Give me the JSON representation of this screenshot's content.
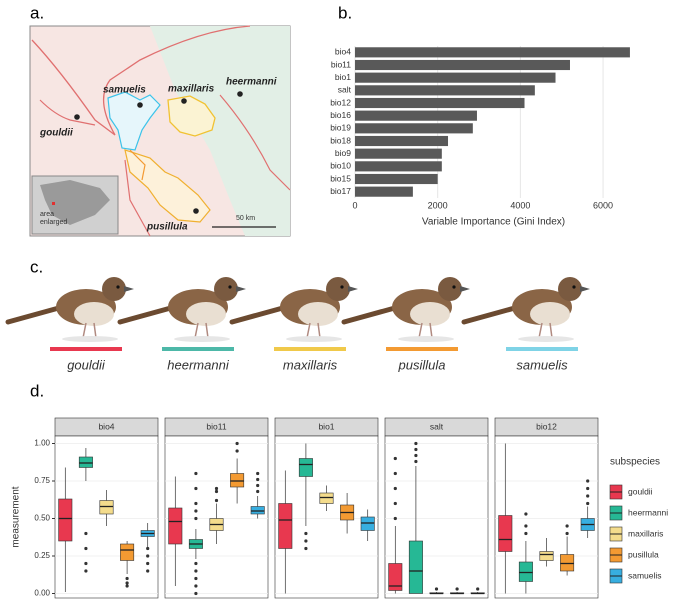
{
  "panels": [
    "a.",
    "b.",
    "c.",
    "d."
  ],
  "map": {
    "labels": [
      "samuelis",
      "maxillaris",
      "heermanni",
      "gouldii",
      "pusillula",
      "50 km",
      "area",
      "enlarged"
    ]
  },
  "birds": [
    {
      "name": "gouldii",
      "color": "#e8384f"
    },
    {
      "name": "heermanni",
      "color": "#4db8a8"
    },
    {
      "name": "maxillaris",
      "color": "#f0c94a"
    },
    {
      "name": "pusillula",
      "color": "#f39a32"
    },
    {
      "name": "samuelis",
      "color": "#7fd3e6"
    }
  ],
  "chart_data": [
    {
      "type": "hbar",
      "x_label": "Variable Importance (Gini Index)",
      "color": "#595959",
      "grid": true,
      "categories": [
        "bio4",
        "bio11",
        "bio1",
        "salt",
        "bio12",
        "bio16",
        "bio19",
        "bio18",
        "bio9",
        "bio10",
        "bio15",
        "bio17"
      ],
      "values": [
        6650,
        5200,
        4850,
        4350,
        4100,
        2950,
        2850,
        2250,
        2100,
        2100,
        2000,
        1400
      ],
      "xlim": [
        0,
        6700
      ],
      "xticks": [
        0,
        2000,
        4000,
        6000
      ]
    },
    {
      "type": "box",
      "y_label": "measurement",
      "legend_title": "subspecies",
      "legend": "right",
      "grid": true,
      "facets": [
        "bio4",
        "bio11",
        "bio1",
        "salt",
        "bio12"
      ],
      "ylim": [
        -0.03,
        1.05
      ],
      "yticks": [
        {
          "value": 0,
          "label": "0.00"
        },
        {
          "value": 0.25,
          "label": "0.25"
        },
        {
          "value": 0.5,
          "label": "0.50"
        },
        {
          "value": 0.75,
          "label": "0.75"
        },
        {
          "value": 1,
          "label": "1.00"
        }
      ],
      "series": [
        {
          "name": "gouldii",
          "color": "#e8384f",
          "boxes": [
            {
              "min": 0.01,
              "q1": 0.35,
              "median": 0.5,
              "q3": 0.63,
              "max": 0.84,
              "outliers": []
            },
            {
              "min": 0.05,
              "q1": 0.33,
              "median": 0.48,
              "q3": 0.57,
              "max": 0.78,
              "outliers": []
            },
            {
              "min": 0,
              "q1": 0.3,
              "median": 0.49,
              "q3": 0.6,
              "max": 0.82,
              "outliers": []
            },
            {
              "min": 0,
              "q1": 0.02,
              "median": 0.05,
              "q3": 0.2,
              "max": 0.45,
              "outliers": [
                0.5,
                0.6,
                0.7,
                0.8,
                0.9
              ]
            },
            {
              "min": 0,
              "q1": 0.28,
              "median": 0.36,
              "q3": 0.52,
              "max": 1.0,
              "outliers": []
            }
          ]
        },
        {
          "name": "heermanni",
          "color": "#26b895",
          "boxes": [
            {
              "min": 0.75,
              "q1": 0.84,
              "median": 0.87,
              "q3": 0.91,
              "max": 0.97,
              "outliers": [
                0.15,
                0.2,
                0.3,
                0.4
              ]
            },
            {
              "min": 0.23,
              "q1": 0.3,
              "median": 0.33,
              "q3": 0.36,
              "max": 0.43,
              "outliers": [
                0,
                0.05,
                0.1,
                0.15,
                0.2,
                0.5,
                0.55,
                0.6,
                0.7,
                0.8
              ]
            },
            {
              "min": 0.45,
              "q1": 0.78,
              "median": 0.86,
              "q3": 0.9,
              "max": 1.0,
              "outliers": [
                0.3,
                0.35,
                0.4
              ]
            },
            {
              "min": 0,
              "q1": 0,
              "median": 0.15,
              "q3": 0.35,
              "max": 0.85,
              "outliers": [
                0.88,
                0.92,
                0.96,
                1.0
              ]
            },
            {
              "min": 0,
              "q1": 0.08,
              "median": 0.14,
              "q3": 0.21,
              "max": 0.35,
              "outliers": [
                0.4,
                0.45,
                0.53
              ]
            }
          ]
        },
        {
          "name": "maxillaris",
          "color": "#f4dc8c",
          "boxes": [
            {
              "min": 0.45,
              "q1": 0.53,
              "median": 0.58,
              "q3": 0.62,
              "max": 0.69,
              "outliers": []
            },
            {
              "min": 0.33,
              "q1": 0.42,
              "median": 0.46,
              "q3": 0.5,
              "max": 0.6,
              "outliers": [
                0.62,
                0.68,
                0.7
              ]
            },
            {
              "min": 0.55,
              "q1": 0.6,
              "median": 0.64,
              "q3": 0.67,
              "max": 0.72,
              "outliers": []
            },
            {
              "min": 0,
              "q1": 0,
              "median": 0,
              "q3": 0.005,
              "max": 0.01,
              "outliers": [
                0.03
              ]
            },
            {
              "min": 0.18,
              "q1": 0.22,
              "median": 0.26,
              "q3": 0.28,
              "max": 0.37,
              "outliers": []
            }
          ]
        },
        {
          "name": "pusillula",
          "color": "#f39a32",
          "boxes": [
            {
              "min": 0.13,
              "q1": 0.22,
              "median": 0.29,
              "q3": 0.33,
              "max": 0.35,
              "outliers": [
                0.05,
                0.07,
                0.1
              ]
            },
            {
              "min": 0.6,
              "q1": 0.71,
              "median": 0.75,
              "q3": 0.8,
              "max": 0.9,
              "outliers": [
                0.95,
                1.0
              ]
            },
            {
              "min": 0.4,
              "q1": 0.49,
              "median": 0.54,
              "q3": 0.59,
              "max": 0.67,
              "outliers": []
            },
            {
              "min": 0,
              "q1": 0,
              "median": 0,
              "q3": 0.005,
              "max": 0.01,
              "outliers": [
                0.03
              ]
            },
            {
              "min": 0.12,
              "q1": 0.15,
              "median": 0.2,
              "q3": 0.26,
              "max": 0.38,
              "outliers": [
                0.4,
                0.45
              ]
            }
          ]
        },
        {
          "name": "samuelis",
          "color": "#37aee0",
          "boxes": [
            {
              "min": 0.3,
              "q1": 0.38,
              "median": 0.4,
              "q3": 0.42,
              "max": 0.47,
              "outliers": [
                0.15,
                0.2,
                0.25,
                0.3
              ]
            },
            {
              "min": 0.5,
              "q1": 0.53,
              "median": 0.55,
              "q3": 0.58,
              "max": 0.65,
              "outliers": [
                0.68,
                0.72,
                0.76,
                0.8
              ]
            },
            {
              "min": 0.35,
              "q1": 0.42,
              "median": 0.47,
              "q3": 0.51,
              "max": 0.56,
              "outliers": []
            },
            {
              "min": 0,
              "q1": 0,
              "median": 0,
              "q3": 0.005,
              "max": 0.01,
              "outliers": [
                0.03
              ]
            },
            {
              "min": 0.37,
              "q1": 0.42,
              "median": 0.46,
              "q3": 0.5,
              "max": 0.58,
              "outliers": [
                0.6,
                0.65,
                0.7,
                0.75
              ]
            }
          ]
        }
      ]
    }
  ]
}
